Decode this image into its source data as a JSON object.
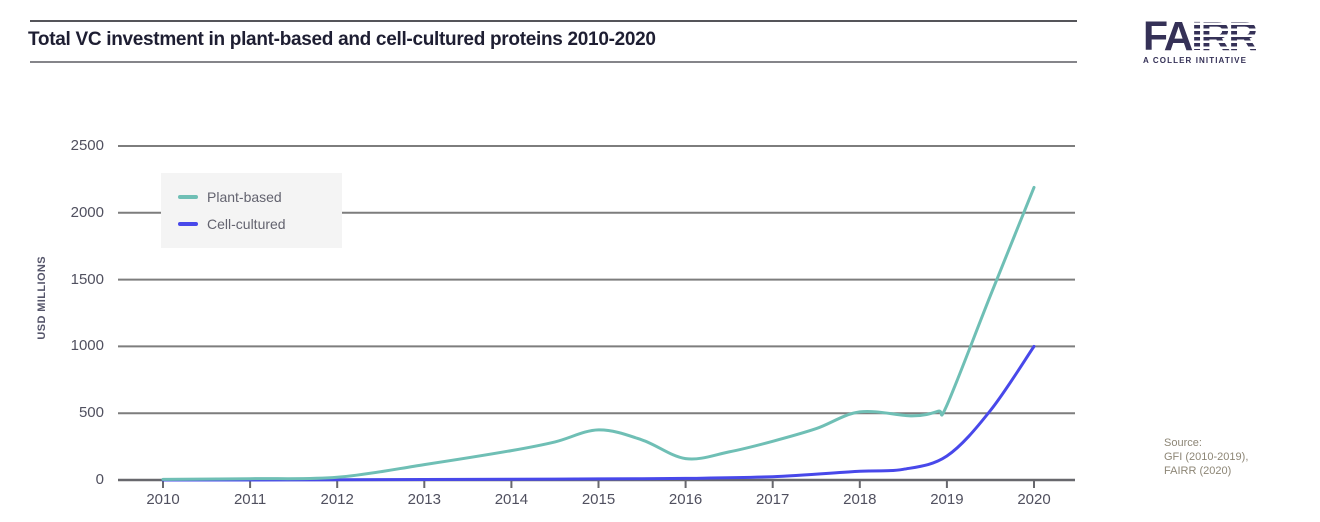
{
  "header": {
    "title": "Total VC investment in plant-based and cell-cultured proteins 2010-2020",
    "logo": {
      "brand_solid": "FA",
      "brand_striped": "IRR",
      "tagline": "A COLLER INITIATIVE"
    }
  },
  "source": {
    "line1": "Source:",
    "line2": "GFI (2010-2019),",
    "line3": "FAIRR (2020)"
  },
  "colors": {
    "plant_based": "#6fbfb5",
    "cell_cultured": "#4848ea",
    "gridline": "#7d7d7d",
    "axis": "#68686d",
    "title_text": "#1e1e32",
    "axis_text": "#50505f",
    "legend_bg": "#f4f4f4",
    "logo_navy": "#353157",
    "source_text": "#8d8676"
  },
  "chart_data": {
    "type": "line",
    "title": "Total VC investment in plant-based and cell-cultured proteins 2010-2020",
    "xlabel": "",
    "ylabel": "USD MILLIONS",
    "x": [
      2010,
      2011,
      2012,
      2013,
      2014,
      2015,
      2016,
      2017,
      2018,
      2019,
      2020
    ],
    "ylim": [
      0,
      2500
    ],
    "y_ticks": [
      0,
      500,
      1000,
      1500,
      2000,
      2500
    ],
    "grid": "horizontal",
    "legend_position": "upper-left-inside",
    "series": [
      {
        "name": "Plant-based",
        "color": "#6fbfb5",
        "values": [
          5,
          10,
          20,
          115,
          220,
          375,
          160,
          290,
          510,
          560,
          2190
        ],
        "shape_points": [
          [
            2010,
            5
          ],
          [
            2011,
            10
          ],
          [
            2012,
            20
          ],
          [
            2013,
            115
          ],
          [
            2014,
            220
          ],
          [
            2014.5,
            285
          ],
          [
            2015,
            375
          ],
          [
            2015.5,
            300
          ],
          [
            2016,
            160
          ],
          [
            2016.5,
            210
          ],
          [
            2017,
            290
          ],
          [
            2017.5,
            385
          ],
          [
            2018,
            510
          ],
          [
            2018.6,
            480
          ],
          [
            2018.9,
            515
          ],
          [
            2019,
            560
          ],
          [
            2019.5,
            1380
          ],
          [
            2020,
            2190
          ]
        ]
      },
      {
        "name": "Cell-cultured",
        "color": "#4848ea",
        "values": [
          0,
          0,
          2,
          4,
          6,
          8,
          12,
          25,
          65,
          180,
          1000
        ],
        "shape_points": [
          [
            2010,
            0
          ],
          [
            2011,
            0
          ],
          [
            2012,
            2
          ],
          [
            2013,
            4
          ],
          [
            2014,
            6
          ],
          [
            2015,
            8
          ],
          [
            2016,
            12
          ],
          [
            2017,
            25
          ],
          [
            2018,
            65
          ],
          [
            2018.5,
            80
          ],
          [
            2019,
            180
          ],
          [
            2019.5,
            520
          ],
          [
            2020,
            1000
          ]
        ]
      }
    ]
  }
}
